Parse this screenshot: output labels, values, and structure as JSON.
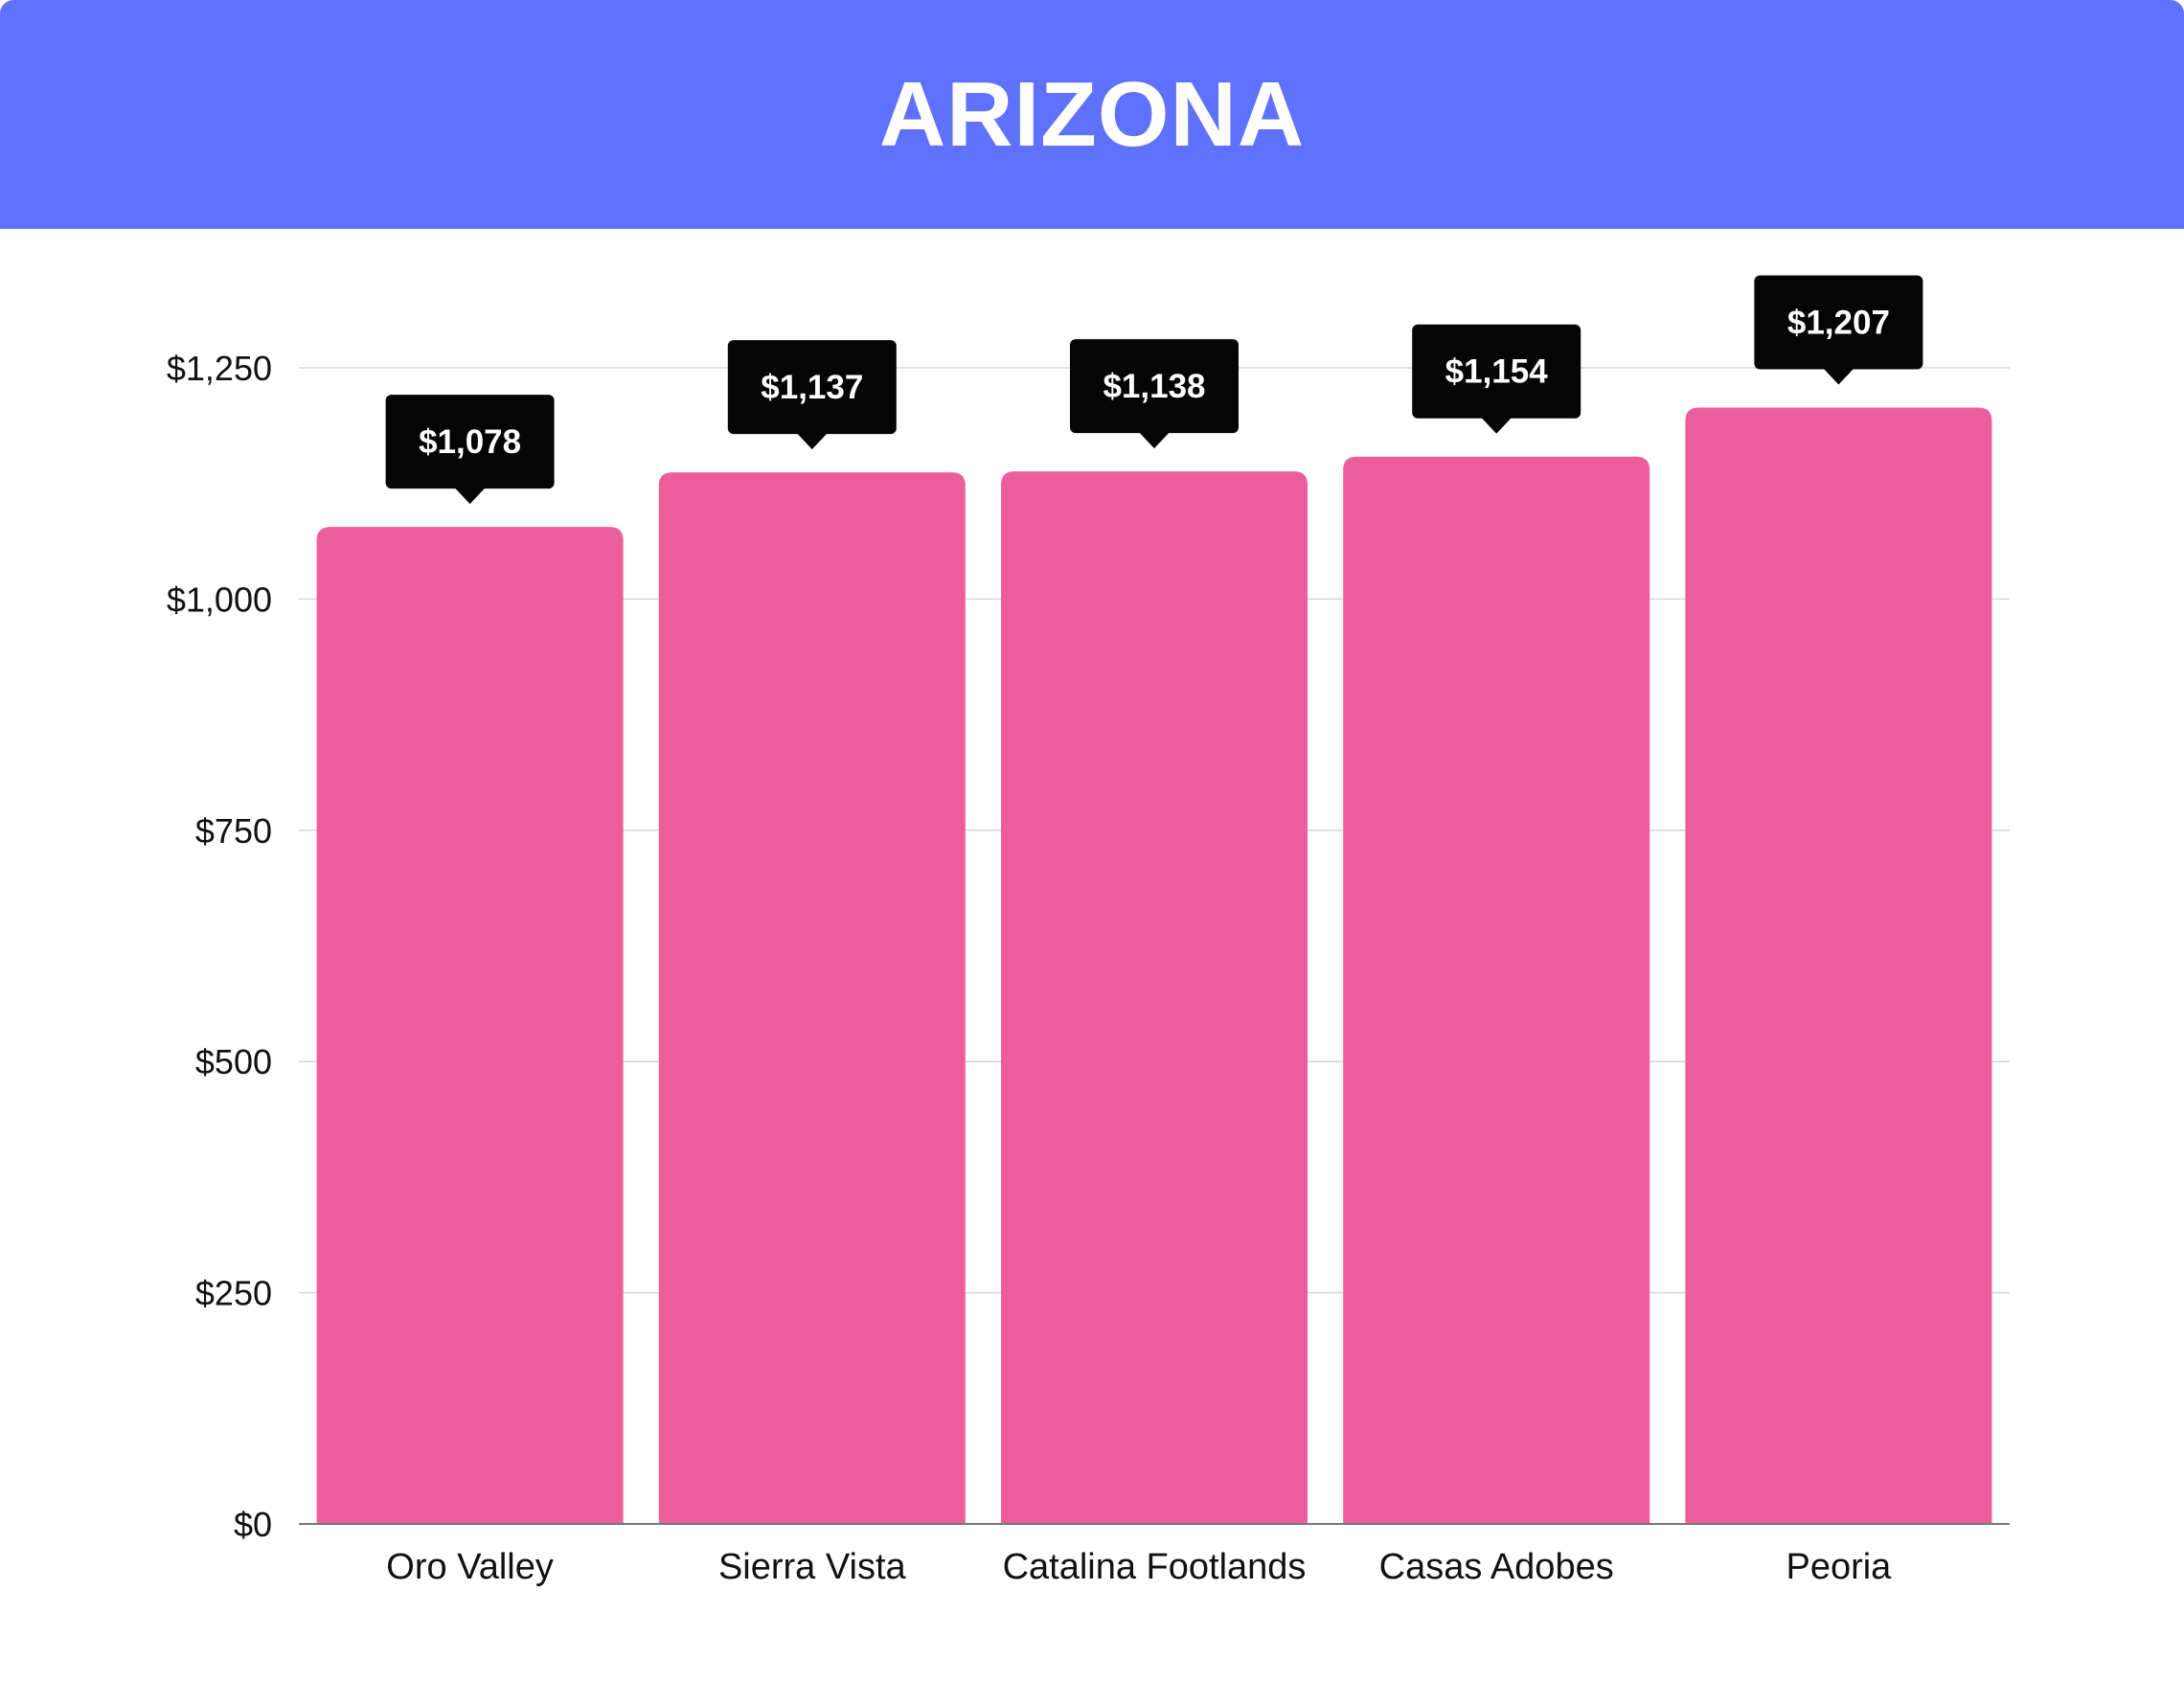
{
  "colors": {
    "header_bg": "#5f71ff",
    "bar": "#ec5e9b",
    "callout_bg": "#050505",
    "gridline": "#d6d6d6",
    "axis": "#777777"
  },
  "chart_data": {
    "type": "bar",
    "title": "ARIZONA",
    "xlabel": "",
    "ylabel": "",
    "categories": [
      "Oro Valley",
      "Sierra Vista",
      "Catalina Footlands",
      "Casas Adobes",
      "Peoria"
    ],
    "values": [
      1078,
      1137,
      1138,
      1154,
      1207
    ],
    "value_labels": [
      "$1,078",
      "$1,137",
      "$1,138",
      "$1,154",
      "$1,207"
    ],
    "ylim": [
      0,
      1250
    ],
    "yticks": [
      0,
      250,
      500,
      750,
      1000,
      1250
    ],
    "ytick_labels": [
      "$0",
      "$250",
      "$500",
      "$750",
      "$1,000",
      "$1,250"
    ],
    "grid": true,
    "legend": "none"
  }
}
